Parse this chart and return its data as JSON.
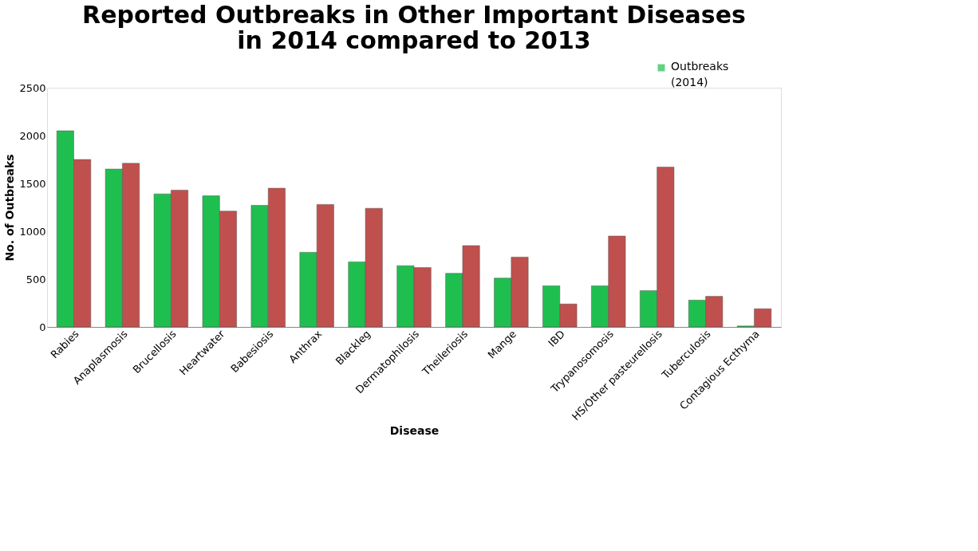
{
  "chart_data": {
    "type": "bar",
    "title": "Reported Outbreaks in Other Important Diseases in 2014 compared to 2013",
    "xlabel": "Disease",
    "ylabel": "No. of Outbreaks",
    "categories": [
      "Rabies",
      "Anaplasmosis",
      "Brucellosis",
      "Heartwater",
      "Babesiosis",
      "Anthrax",
      "Blackleg",
      "Dermatophilosis",
      "Theileriosis",
      "Mange",
      "IBD",
      "Trypanosomosis",
      "HS/Other pasteurellosis",
      "Tuberculosis",
      "Contagious Ecthyma"
    ],
    "series": [
      {
        "name": "Outbreaks (2014)",
        "color": "#1fbf4f",
        "values": [
          2050,
          1650,
          1390,
          1370,
          1270,
          780,
          680,
          640,
          560,
          510,
          430,
          430,
          380,
          280,
          10
        ]
      },
      {
        "color": "#c0504d",
        "values": [
          1750,
          1710,
          1430,
          1210,
          1450,
          1280,
          1240,
          620,
          850,
          730,
          240,
          950,
          1670,
          320,
          190
        ]
      }
    ],
    "ylim": [
      0,
      2500
    ],
    "yticks": [
      0,
      500,
      1000,
      1500,
      2000,
      2500
    ],
    "grid": false,
    "legend": "top right"
  }
}
